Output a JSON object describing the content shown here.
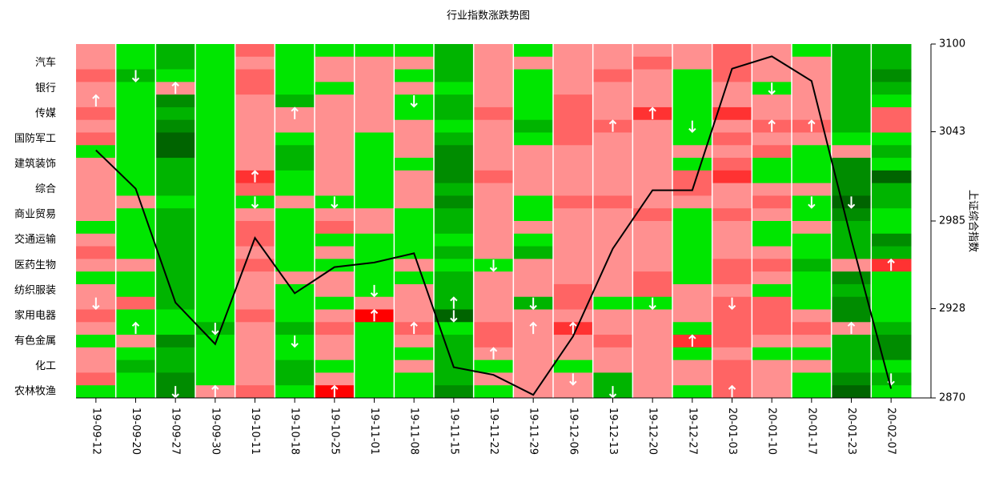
{
  "chart_data": {
    "type": "heatmap_line",
    "title": "行业指数涨跌势图",
    "y2_label": "上证综合指数",
    "rows": [
      null,
      "汽车",
      null,
      "银行",
      null,
      "传媒",
      null,
      "国防军工",
      null,
      "建筑装饰",
      null,
      "综合",
      null,
      "商业贸易",
      null,
      "交通运输",
      null,
      "医药生物",
      null,
      "纺织服装",
      null,
      "家用电器",
      null,
      "有色金属",
      null,
      "化工",
      null,
      "农林牧渔"
    ],
    "categories": [
      "19-09-12",
      "19-09-20",
      "19-09-27",
      "19-09-30",
      "19-10-11",
      "19-10-18",
      "19-10-25",
      "19-11-01",
      "19-11-08",
      "19-11-15",
      "19-11-22",
      "19-11-29",
      "19-12-06",
      "19-12-13",
      "19-12-20",
      "19-12-27",
      "20-01-03",
      "20-01-10",
      "20-01-17",
      "20-01-23",
      "20-02-07"
    ],
    "colorscale": [
      {
        "value": -4,
        "color": "#006400"
      },
      {
        "value": -3,
        "color": "#008c00"
      },
      {
        "value": -2,
        "color": "#00b400"
      },
      {
        "value": -1,
        "color": "#00e600"
      },
      {
        "value": 1,
        "color": "#ff9090"
      },
      {
        "value": 2,
        "color": "#ff6464"
      },
      {
        "value": 3,
        "color": "#ff3232"
      },
      {
        "value": 4,
        "color": "#ff0000"
      }
    ],
    "cells": [
      [
        1,
        1,
        2,
        1,
        1,
        2,
        1,
        2,
        -1,
        1,
        1,
        1,
        1,
        1,
        -1,
        1,
        2,
        1,
        -1,
        1,
        1,
        2,
        1,
        -1,
        1,
        1,
        2,
        -1
      ],
      [
        -1,
        -1,
        -2,
        -1,
        -1,
        -1,
        -1,
        -1,
        -1,
        -1,
        -1,
        -1,
        1,
        -1,
        -1,
        -1,
        -1,
        1,
        -1,
        -1,
        2,
        -1,
        -1,
        1,
        -1,
        -2,
        -1,
        -1
      ],
      [
        -2,
        -2,
        -1,
        1,
        -3,
        -2,
        -3,
        -4,
        -4,
        -2,
        -2,
        -2,
        -1,
        -2,
        -2,
        -2,
        -2,
        -2,
        -2,
        -2,
        -2,
        -1,
        -1,
        -3,
        -2,
        -2,
        -3,
        -3
      ],
      [
        -1,
        -1,
        -1,
        -1,
        -1,
        -1,
        -1,
        -1,
        -1,
        -1,
        -1,
        -1,
        -1,
        -1,
        -1,
        -1,
        -1,
        -1,
        -1,
        -1,
        -1,
        -1,
        -2,
        -1,
        -1,
        -1,
        -1,
        1
      ],
      [
        2,
        1,
        2,
        2,
        1,
        1,
        1,
        1,
        1,
        1,
        3,
        2,
        -1,
        1,
        2,
        2,
        1,
        2,
        1,
        1,
        1,
        2,
        1,
        1,
        1,
        1,
        1,
        2
      ],
      [
        -1,
        -1,
        -1,
        -1,
        -2,
        1,
        1,
        -1,
        -2,
        -2,
        -1,
        -1,
        1,
        -1,
        -1,
        -1,
        -1,
        -1,
        1,
        -1,
        -1,
        -1,
        -2,
        -1,
        -1,
        -2,
        -2,
        -1
      ],
      [
        -1,
        1,
        1,
        -1,
        1,
        1,
        1,
        1,
        1,
        1,
        1,
        1,
        -1,
        1,
        2,
        -1,
        1,
        -1,
        1,
        1,
        -1,
        1,
        2,
        1,
        1,
        -1,
        1,
        4
      ],
      [
        -1,
        1,
        1,
        1,
        1,
        1,
        1,
        -1,
        -1,
        -1,
        -1,
        -1,
        -1,
        1,
        1,
        -1,
        -1,
        -1,
        -1,
        -1,
        1,
        4,
        -1,
        -1,
        -1,
        -1,
        -1,
        -1
      ],
      [
        -1,
        1,
        -1,
        1,
        -1,
        -1,
        1,
        1,
        1,
        -1,
        1,
        1,
        1,
        -1,
        -1,
        -1,
        -1,
        1,
        -1,
        1,
        1,
        1,
        2,
        1,
        -1,
        1,
        -1,
        -1
      ],
      [
        -2,
        -2,
        -2,
        -1,
        -2,
        -2,
        -1,
        -2,
        -3,
        -3,
        -3,
        -2,
        -3,
        -2,
        -2,
        -1,
        -2,
        -1,
        -2,
        -2,
        -2,
        -4,
        -1,
        -2,
        -2,
        -2,
        -2,
        -3
      ],
      [
        1,
        1,
        1,
        1,
        1,
        2,
        1,
        1,
        1,
        1,
        2,
        1,
        1,
        1,
        1,
        1,
        1,
        -1,
        1,
        1,
        1,
        1,
        2,
        2,
        1,
        -1,
        1,
        -1
      ],
      [
        -1,
        1,
        -1,
        -1,
        -1,
        -1,
        -2,
        -1,
        1,
        1,
        1,
        1,
        -1,
        -1,
        1,
        -1,
        -2,
        1,
        1,
        1,
        -2,
        1,
        1,
        1,
        1,
        1,
        1,
        1
      ],
      [
        1,
        1,
        1,
        1,
        2,
        2,
        2,
        2,
        1,
        1,
        1,
        1,
        2,
        1,
        1,
        1,
        1,
        1,
        1,
        2,
        2,
        1,
        3,
        1,
        1,
        -1,
        1,
        1
      ],
      [
        1,
        1,
        2,
        1,
        1,
        1,
        2,
        1,
        1,
        1,
        1,
        1,
        2,
        1,
        1,
        1,
        1,
        1,
        1,
        1,
        -1,
        1,
        1,
        2,
        1,
        1,
        -2,
        -2
      ],
      [
        1,
        2,
        1,
        1,
        1,
        3,
        1,
        1,
        1,
        1,
        1,
        1,
        1,
        2,
        1,
        1,
        1,
        1,
        2,
        2,
        -1,
        1,
        1,
        1,
        1,
        1,
        1,
        1
      ],
      [
        1,
        1,
        -1,
        -1,
        -1,
        -1,
        -1,
        -1,
        1,
        -1,
        2,
        2,
        1,
        -1,
        -1,
        -1,
        -1,
        -1,
        -1,
        1,
        1,
        1,
        -1,
        3,
        -1,
        1,
        1,
        -1
      ],
      [
        2,
        2,
        2,
        1,
        1,
        3,
        1,
        2,
        1,
        2,
        3,
        1,
        1,
        2,
        1,
        1,
        1,
        2,
        2,
        1,
        2,
        2,
        2,
        2,
        1,
        2,
        2,
        2
      ],
      [
        1,
        1,
        1,
        -1,
        1,
        1,
        2,
        1,
        2,
        -1,
        -1,
        1,
        2,
        1,
        -1,
        -1,
        1,
        2,
        1,
        -1,
        2,
        2,
        2,
        1,
        -1,
        1,
        1,
        1
      ],
      [
        -1,
        1,
        1,
        1,
        1,
        1,
        2,
        1,
        -1,
        -1,
        -1,
        1,
        -1,
        -1,
        1,
        -1,
        -1,
        -2,
        -1,
        -1,
        -1,
        1,
        2,
        1,
        -1,
        1,
        -1,
        -1
      ],
      [
        -2,
        -2,
        -2,
        -2,
        -2,
        -2,
        -2,
        -1,
        1,
        -3,
        -3,
        -3,
        -4,
        -3,
        -2,
        -2,
        -2,
        1,
        -3,
        -2,
        -3,
        -3,
        1,
        -2,
        -2,
        -2,
        -3,
        -4
      ],
      [
        -2,
        -2,
        -3,
        -2,
        -1,
        2,
        2,
        -1,
        -2,
        -1,
        -4,
        -2,
        -2,
        -1,
        -1,
        -3,
        -2,
        3,
        -1,
        -1,
        -1,
        -1,
        -2,
        -3,
        -3,
        -1,
        -2,
        -1
      ]
    ],
    "arrows": [
      {
        "col": 0,
        "row": 4,
        "dir": "up"
      },
      {
        "col": 0,
        "row": 20,
        "dir": "down"
      },
      {
        "col": 1,
        "row": 2,
        "dir": "down"
      },
      {
        "col": 1,
        "row": 22,
        "dir": "up"
      },
      {
        "col": 2,
        "row": 3,
        "dir": "up"
      },
      {
        "col": 2,
        "row": 27,
        "dir": "down"
      },
      {
        "col": 3,
        "row": 22,
        "dir": "down"
      },
      {
        "col": 3,
        "row": 27,
        "dir": "up"
      },
      {
        "col": 4,
        "row": 10,
        "dir": "up"
      },
      {
        "col": 4,
        "row": 12,
        "dir": "down"
      },
      {
        "col": 5,
        "row": 5,
        "dir": "up"
      },
      {
        "col": 5,
        "row": 23,
        "dir": "down"
      },
      {
        "col": 6,
        "row": 12,
        "dir": "down"
      },
      {
        "col": 6,
        "row": 27,
        "dir": "up"
      },
      {
        "col": 7,
        "row": 19,
        "dir": "down"
      },
      {
        "col": 7,
        "row": 21,
        "dir": "up"
      },
      {
        "col": 8,
        "row": 4,
        "dir": "down"
      },
      {
        "col": 8,
        "row": 22,
        "dir": "up"
      },
      {
        "col": 9,
        "row": 20,
        "dir": "up"
      },
      {
        "col": 9,
        "row": 21,
        "dir": "down"
      },
      {
        "col": 10,
        "row": 17,
        "dir": "down"
      },
      {
        "col": 10,
        "row": 24,
        "dir": "up"
      },
      {
        "col": 11,
        "row": 20,
        "dir": "down"
      },
      {
        "col": 11,
        "row": 22,
        "dir": "up"
      },
      {
        "col": 12,
        "row": 22,
        "dir": "up"
      },
      {
        "col": 12,
        "row": 26,
        "dir": "down"
      },
      {
        "col": 13,
        "row": 6,
        "dir": "up"
      },
      {
        "col": 13,
        "row": 27,
        "dir": "down"
      },
      {
        "col": 14,
        "row": 5,
        "dir": "up"
      },
      {
        "col": 14,
        "row": 20,
        "dir": "down"
      },
      {
        "col": 15,
        "row": 6,
        "dir": "down"
      },
      {
        "col": 15,
        "row": 23,
        "dir": "up"
      },
      {
        "col": 16,
        "row": 20,
        "dir": "down"
      },
      {
        "col": 16,
        "row": 27,
        "dir": "up"
      },
      {
        "col": 17,
        "row": 3,
        "dir": "down"
      },
      {
        "col": 17,
        "row": 6,
        "dir": "up"
      },
      {
        "col": 18,
        "row": 6,
        "dir": "up"
      },
      {
        "col": 18,
        "row": 12,
        "dir": "down"
      },
      {
        "col": 19,
        "row": 12,
        "dir": "down"
      },
      {
        "col": 19,
        "row": 22,
        "dir": "up"
      },
      {
        "col": 20,
        "row": 17,
        "dir": "up"
      },
      {
        "col": 20,
        "row": 26,
        "dir": "down"
      }
    ],
    "series": [
      {
        "name": "上证综合指数",
        "color": "#000000",
        "axis": "y2",
        "values": [
          3031,
          3006,
          2932,
          2905,
          2974,
          2938,
          2955,
          2958,
          2964,
          2890,
          2885,
          2872,
          2910,
          2967,
          3005,
          3005,
          3084,
          3092,
          3076,
          2973,
          2876
        ]
      }
    ],
    "y2lim": [
      2870,
      3100
    ],
    "y2ticks": [
      2870,
      2928,
      2985,
      3043,
      3100
    ]
  }
}
